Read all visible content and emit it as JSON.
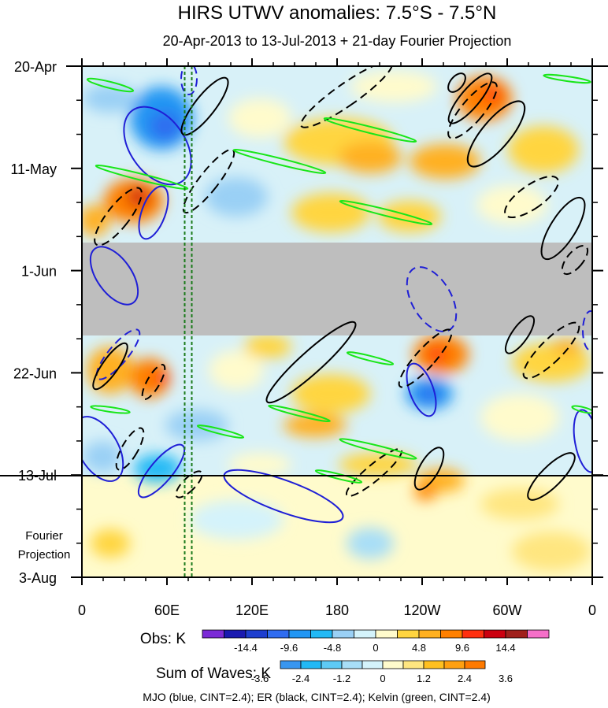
{
  "chart_data": {
    "type": "heatmap",
    "title": "HIRS UTWV anomalies: 7.5°S - 7.5°N",
    "subtitle": "20-Apr-2013 to 13-Jul-2013 + 21-day Fourier Projection",
    "x_axis": {
      "range_deg_east": [
        0,
        360
      ],
      "ticks": [
        {
          "lon": 0,
          "label": "0"
        },
        {
          "lon": 60,
          "label": "60E"
        },
        {
          "lon": 120,
          "label": "120E"
        },
        {
          "lon": 180,
          "label": "180"
        },
        {
          "lon": 240,
          "label": "120W"
        },
        {
          "lon": 300,
          "label": "60W"
        },
        {
          "lon": 360,
          "label": "0"
        }
      ]
    },
    "y_axis": {
      "range_days": [
        0,
        105
      ],
      "ticks": [
        {
          "day": 0,
          "label": "20-Apr"
        },
        {
          "day": 21,
          "label": "11-May"
        },
        {
          "day": 42,
          "label": "1-Jun"
        },
        {
          "day": 63,
          "label": "22-Jun"
        },
        {
          "day": 84,
          "label": "13-Jul"
        },
        {
          "day": 105,
          "label": "3-Aug"
        }
      ]
    },
    "forecast_start_day": 84,
    "forecast_label": [
      "Fourier",
      "Projection"
    ],
    "missing_data_days": [
      36.5,
      55.5
    ],
    "reference_longitudes": [
      72.5,
      77.5
    ],
    "colorbars": [
      {
        "label": "Obs: K",
        "levels": [
          "-14.4",
          "-9.6",
          "-4.8",
          "0",
          "4.8",
          "9.6",
          "14.4"
        ],
        "colors": [
          "#7b2ad6",
          "#1a1ab0",
          "#1e3fcf",
          "#2f6cf0",
          "#2196f3",
          "#22b9f5",
          "#9ad0f5",
          "#d4f3fb",
          "#fffbcc",
          "#ffd540",
          "#ffb020",
          "#ff8000",
          "#ff3010",
          "#cc0010",
          "#a0201c",
          "#f56fc8"
        ]
      },
      {
        "label": "Sum of Waves: K",
        "levels": [
          "-3.6",
          "-2.4",
          "-1.2",
          "0",
          "1.2",
          "2.4",
          "3.6"
        ],
        "colors": [
          "#3896f0",
          "#22b9f5",
          "#5ecaf5",
          "#a8def7",
          "#d4f3fb",
          "#fffbcc",
          "#ffe680",
          "#ffc020",
          "#ffa010",
          "#ff7a00"
        ]
      }
    ],
    "footer": "MJO (blue, CINT=2.4); ER (black, CINT=2.4); Kelvin (green, CINT=2.4)",
    "wave_colors": {
      "MJO": "#1f1fd6",
      "ER": "#000000",
      "Kelvin": "#19e619"
    },
    "missing_color": "#bebebe",
    "reference_line_color": "#1a7a1a"
  }
}
